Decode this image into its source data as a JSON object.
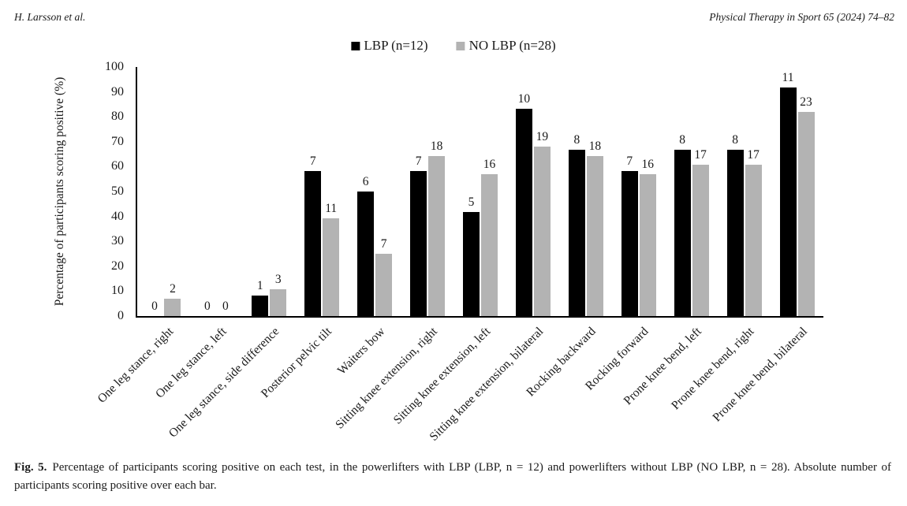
{
  "header": {
    "authors": "H. Larsson et al.",
    "journal": "Physical Therapy in Sport 65 (2024) 74–82"
  },
  "legend": {
    "items": [
      {
        "label": "LBP (n=12)",
        "color": "#000000"
      },
      {
        "label": "NO LBP (n=28)",
        "color": "#b3b3b3"
      }
    ]
  },
  "chart_data": {
    "type": "bar",
    "title": "",
    "xlabel": "",
    "ylabel": "Percentage of participants scoring positive (%)",
    "ylim": [
      0,
      100
    ],
    "ytick_step": 10,
    "grid": false,
    "legend_position": "top-center",
    "bar_value_labels": "absolute number of participants above each bar",
    "categories": [
      "One leg stance, right",
      "One leg stance, left",
      "One leg stance, side difference",
      "Posterior pelvic tilt",
      "Waiters bow",
      "Sitting knee extension, right",
      "Sitting knee extension, left",
      "Sitting knee extension, bilateral",
      "Rocking backward",
      "Rocking forward",
      "Prone knee bend, left",
      "Prone knee bend, right",
      "Prone knee bend, bilateral"
    ],
    "series": [
      {
        "name": "LBP (n=12)",
        "color": "#000000",
        "n": 12,
        "counts": [
          0,
          0,
          1,
          7,
          6,
          7,
          5,
          10,
          8,
          7,
          8,
          8,
          11
        ],
        "percents": [
          0,
          0,
          8.3,
          58.3,
          50,
          58.3,
          41.7,
          83.3,
          66.7,
          58.3,
          66.7,
          66.7,
          91.7
        ]
      },
      {
        "name": "NO LBP (n=28)",
        "color": "#b3b3b3",
        "n": 28,
        "counts": [
          2,
          0,
          3,
          11,
          7,
          18,
          16,
          19,
          18,
          16,
          17,
          17,
          23
        ],
        "percents": [
          7.1,
          0,
          10.7,
          39.3,
          25,
          64.3,
          57.1,
          67.9,
          64.3,
          57.1,
          60.7,
          60.7,
          82.1
        ]
      }
    ]
  },
  "caption": {
    "label": "Fig. 5.",
    "text": "Percentage of participants scoring positive on each test, in the powerlifters with LBP (LBP, n = 12) and powerlifters without LBP (NO LBP, n = 28). Absolute number of participants scoring positive over each bar."
  }
}
